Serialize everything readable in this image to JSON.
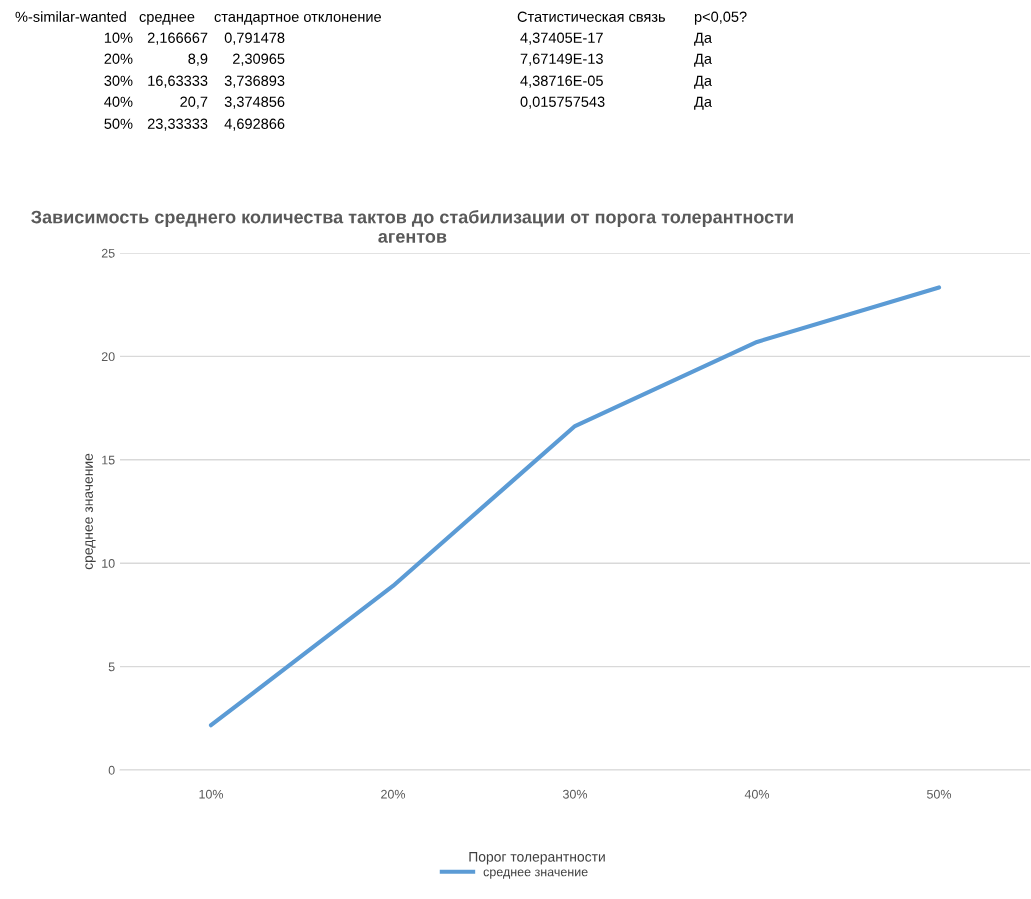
{
  "chart_data": {
    "type": "line",
    "title": "Зависимость среднего количества тактов до стабилизации от порога толерантности агентов",
    "xlabel": "Порог толерантности",
    "ylabel": "среднее значение",
    "categories": [
      "10%",
      "20%",
      "30%",
      "40%",
      "50%"
    ],
    "series": [
      {
        "name": "среднее значение",
        "color": "#5b9bd5",
        "values": [
          2.166667,
          8.9,
          16.63333,
          20.7,
          23.33333
        ]
      }
    ],
    "ylim": [
      0,
      25
    ],
    "yticks": [
      0,
      5,
      10,
      15,
      20,
      25
    ],
    "grid": "y",
    "legend": "bottom",
    "marker": "none",
    "line_style": "solid",
    "annotations": [
      "%-similar-wanted",
      "среднее",
      "стандартное отклонение",
      "Статистическая связь",
      "p<0,05?",
      "2,166667",
      "8,9",
      "16,63333",
      "20,7",
      "23,33333",
      "0,791478",
      "2,30965",
      "3,736893",
      "3,374856",
      "4,692866",
      "4,37405E-17",
      "7,67149E-13",
      "4,38716E-05",
      "0,015757543",
      "Да",
      "Да",
      "Да",
      "Да"
    ]
  }
}
